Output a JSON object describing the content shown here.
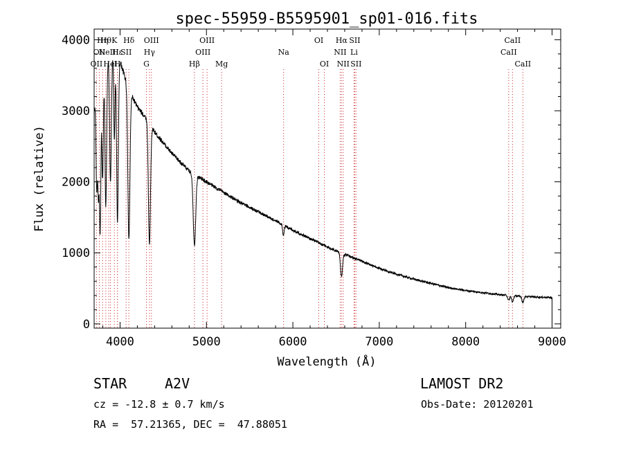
{
  "chart_data": {
    "type": "line",
    "title": "spec-55959-B5595901_sp01-016.fits",
    "xlabel": "Wavelength (Å)",
    "ylabel": "Flux (relative)",
    "xlim": [
      3700,
      9100
    ],
    "ylim": [
      -60,
      4150
    ],
    "x_ticks": [
      4000,
      5000,
      6000,
      7000,
      8000,
      9000
    ],
    "y_ticks": [
      0,
      1000,
      2000,
      3000,
      4000
    ],
    "grid": false,
    "line_color": "#000000",
    "marker_color": "#cc2222",
    "continuum": {
      "x": [
        3700,
        3800,
        3900,
        4000,
        4100,
        4200,
        4300,
        4400,
        4500,
        4600,
        4800,
        5000,
        5200,
        5400,
        5600,
        5800,
        6000,
        6200,
        6400,
        6600,
        6800,
        7000,
        7200,
        7400,
        7600,
        7800,
        8000,
        8200,
        8400,
        8600,
        8800,
        9000
      ],
      "y": [
        3000,
        3750,
        3800,
        3700,
        3300,
        3050,
        2900,
        2700,
        2550,
        2400,
        2150,
        2000,
        1850,
        1700,
        1580,
        1450,
        1320,
        1200,
        1080,
        980,
        880,
        780,
        700,
        630,
        570,
        510,
        470,
        440,
        410,
        390,
        380,
        370
      ]
    },
    "absorption_lines": [
      {
        "wavelength": 3730,
        "depth": 1300,
        "width": 8
      },
      {
        "wavelength": 3750,
        "depth": 1500,
        "width": 8
      },
      {
        "wavelength": 3770,
        "depth": 2200,
        "width": 8
      },
      {
        "wavelength": 3798,
        "depth": 1700,
        "width": 9
      },
      {
        "wavelength": 3835,
        "depth": 2100,
        "width": 10
      },
      {
        "wavelength": 3889,
        "depth": 1800,
        "width": 10
      },
      {
        "wavelength": 3934,
        "depth": 1200,
        "width": 7
      },
      {
        "wavelength": 3970,
        "depth": 2300,
        "width": 10
      },
      {
        "wavelength": 4102,
        "depth": 2100,
        "width": 12
      },
      {
        "wavelength": 4340,
        "depth": 1700,
        "width": 12
      },
      {
        "wavelength": 4861,
        "depth": 1000,
        "width": 14
      },
      {
        "wavelength": 5890,
        "depth": 150,
        "width": 8
      },
      {
        "wavelength": 6563,
        "depth": 330,
        "width": 12
      },
      {
        "wavelength": 8498,
        "depth": 70,
        "width": 10
      },
      {
        "wavelength": 8542,
        "depth": 90,
        "width": 10
      },
      {
        "wavelength": 8662,
        "depth": 90,
        "width": 10
      }
    ],
    "line_markers": [
      {
        "wavelength": 3727,
        "label": "OII",
        "row": 3
      },
      {
        "wavelength": 3760,
        "label": "OII",
        "row": 2
      },
      {
        "wavelength": 3798,
        "label": "Hη",
        "row": 1
      },
      {
        "wavelength": 3835,
        "label": "Hθ",
        "row": 1
      },
      {
        "wavelength": 3869,
        "label": "NeIII",
        "row": 2
      },
      {
        "wavelength": 3889,
        "label": "HeI",
        "row": 3
      },
      {
        "wavelength": 3934,
        "label": "K",
        "row": 1
      },
      {
        "wavelength": 3969,
        "label": "H",
        "row": 3
      },
      {
        "wavelength": 3970,
        "label": "Hε",
        "row": 2
      },
      {
        "wavelength": 4070,
        "label": "SII",
        "row": 2
      },
      {
        "wavelength": 4102,
        "label": "Hδ",
        "row": 1
      },
      {
        "wavelength": 4305,
        "label": "G",
        "row": 3
      },
      {
        "wavelength": 4340,
        "label": "Hγ",
        "row": 2
      },
      {
        "wavelength": 4363,
        "label": "OIII",
        "row": 1
      },
      {
        "wavelength": 4861,
        "label": "Hβ",
        "row": 3
      },
      {
        "wavelength": 4959,
        "label": "OIII",
        "row": 2
      },
      {
        "wavelength": 5007,
        "label": "OIII",
        "row": 1
      },
      {
        "wavelength": 5175,
        "label": "Mg",
        "row": 3
      },
      {
        "wavelength": 5893,
        "label": "Na",
        "row": 2
      },
      {
        "wavelength": 6300,
        "label": "OI",
        "row": 1
      },
      {
        "wavelength": 6364,
        "label": "OI",
        "row": 3
      },
      {
        "wavelength": 6548,
        "label": "NII",
        "row": 2
      },
      {
        "wavelength": 6563,
        "label": "Hα",
        "row": 1
      },
      {
        "wavelength": 6583,
        "label": "NII",
        "row": 3
      },
      {
        "wavelength": 6708,
        "label": "Li",
        "row": 2
      },
      {
        "wavelength": 6716,
        "label": "SII",
        "row": 1
      },
      {
        "wavelength": 6731,
        "label": "SII",
        "row": 3
      },
      {
        "wavelength": 8498,
        "label": "CaII",
        "row": 2
      },
      {
        "wavelength": 8542,
        "label": "CaII",
        "row": 1
      },
      {
        "wavelength": 8662,
        "label": "CaII",
        "row": 3
      }
    ]
  },
  "info": {
    "class_label": "STAR",
    "subclass_label": "A2V",
    "redshift_text": "cz = -12.8 ± 0.7 km/s",
    "coords_text": "RA =  57.21365, DEC =  47.88051",
    "survey_text": "LAMOST DR2",
    "obsdate_text": "Obs-Date: 20120201"
  }
}
